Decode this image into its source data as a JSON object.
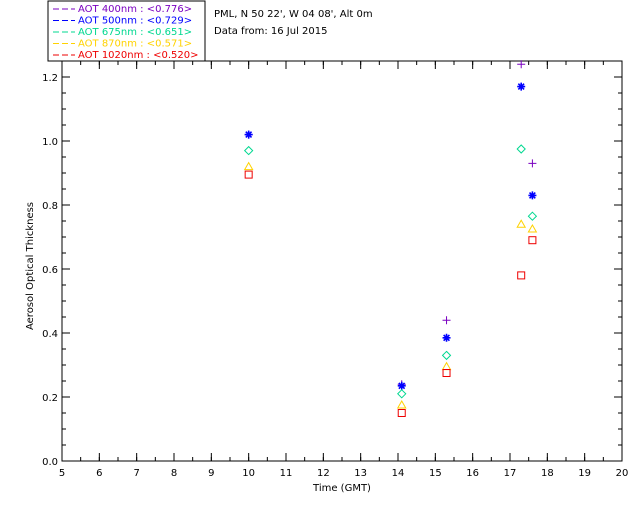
{
  "chart_data": {
    "type": "scatter",
    "title_lines": [
      "PML, N 50 22', W 04 08', Alt 0m",
      "Data from: 16 Jul 2015"
    ],
    "xlabel": "Time (GMT)",
    "ylabel": "Aerosol Optical Thickness",
    "xlim": [
      5,
      20
    ],
    "ylim": [
      0.0,
      1.25
    ],
    "xticks": [
      "5",
      "6",
      "7",
      "8",
      "9",
      "10",
      "11",
      "12",
      "13",
      "14",
      "15",
      "16",
      "17",
      "18",
      "19",
      "20"
    ],
    "yticks": [
      "0.0",
      "0.2",
      "0.4",
      "0.6",
      "0.8",
      "1.0",
      "1.2"
    ],
    "legend_position": "top-left",
    "series": [
      {
        "name": "400nm",
        "legend": "AOT  400nm : <0.776>",
        "color": "#7a00c0",
        "marker": "plus",
        "x": [
          10.0,
          14.1,
          15.3,
          17.3,
          17.6
        ],
        "y": [
          1.02,
          0.24,
          0.44,
          1.24,
          0.93
        ]
      },
      {
        "name": "500nm",
        "legend": "AOT  500nm : <0.729>",
        "color": "#0000ff",
        "marker": "asterisk",
        "x": [
          10.0,
          14.1,
          15.3,
          17.3,
          17.6
        ],
        "y": [
          1.02,
          0.235,
          0.385,
          1.17,
          0.83
        ]
      },
      {
        "name": "675nm",
        "legend": "AOT  675nm : <0.651>",
        "color": "#00d890",
        "marker": "diamond",
        "x": [
          10.0,
          14.1,
          15.3,
          17.3,
          17.6
        ],
        "y": [
          0.97,
          0.21,
          0.33,
          0.975,
          0.765
        ]
      },
      {
        "name": "870nm",
        "legend": "AOT  870nm : <0.571>",
        "color": "#ffd200",
        "marker": "triangle",
        "x": [
          10.0,
          14.1,
          15.3,
          17.3,
          17.6
        ],
        "y": [
          0.92,
          0.175,
          0.295,
          0.74,
          0.725
        ]
      },
      {
        "name": "1020nm",
        "legend": "AOT 1020nm : <0.520>",
        "color": "#ee0000",
        "marker": "square",
        "x": [
          10.0,
          14.1,
          15.3,
          17.3,
          17.6
        ],
        "y": [
          0.895,
          0.15,
          0.275,
          0.58,
          0.69
        ]
      }
    ]
  }
}
